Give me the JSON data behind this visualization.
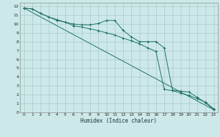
{
  "xlabel": "Humidex (Indice chaleur)",
  "bg_color": "#cce8e8",
  "grid_color": "#aac8c8",
  "line_color": "#1a7060",
  "xlim": [
    -0.5,
    23.5
  ],
  "ylim": [
    0,
    12.4
  ],
  "xticks": [
    0,
    1,
    2,
    3,
    4,
    5,
    6,
    7,
    8,
    9,
    10,
    11,
    12,
    13,
    14,
    15,
    16,
    17,
    18,
    19,
    20,
    21,
    22,
    23
  ],
  "yticks": [
    0,
    1,
    2,
    3,
    4,
    5,
    6,
    7,
    8,
    9,
    10,
    11,
    12
  ],
  "line1_x": [
    0,
    1,
    2,
    3,
    4,
    5,
    6,
    7,
    8,
    9,
    10,
    11,
    12,
    13,
    14,
    15,
    16,
    17,
    18,
    19,
    20,
    21,
    22,
    23
  ],
  "line1_y": [
    11.8,
    11.7,
    11.2,
    10.8,
    10.4,
    10.2,
    10.0,
    9.9,
    9.9,
    10.05,
    10.4,
    10.4,
    9.3,
    8.55,
    8.0,
    8.0,
    8.0,
    7.3,
    2.5,
    2.4,
    2.3,
    1.7,
    1.1,
    0.3
  ],
  "line2_x": [
    0,
    1,
    2,
    3,
    4,
    5,
    6,
    7,
    8,
    9,
    10,
    11,
    12,
    13,
    14,
    15,
    16,
    17,
    18,
    19,
    20,
    21,
    22,
    23
  ],
  "line2_y": [
    11.8,
    11.7,
    11.2,
    10.8,
    10.5,
    10.2,
    9.8,
    9.65,
    9.45,
    9.25,
    9.0,
    8.75,
    8.4,
    8.1,
    7.75,
    7.3,
    6.9,
    2.6,
    2.45,
    2.2,
    1.9,
    1.55,
    1.15,
    0.4
  ],
  "line3_x": [
    0,
    23
  ],
  "line3_y": [
    11.8,
    0.3
  ]
}
